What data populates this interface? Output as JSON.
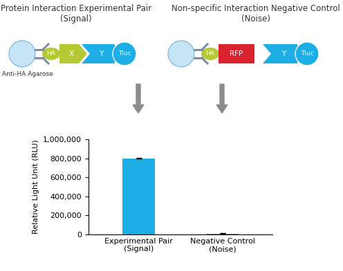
{
  "chart_data": {
    "type": "bar",
    "categories": [
      "Experimental Pair\n(Signal)",
      "Negative Control\n(Noise)"
    ],
    "values": [
      800000,
      10000
    ],
    "errors": [
      5000,
      5000
    ],
    "color": "#1daee6",
    "y_label": "Relative Light Unit (RLU)",
    "ylim": [
      0,
      1000000
    ],
    "yticks": [
      0,
      {
        "value": 200000,
        "label": "200,000"
      },
      {
        "value": 400000,
        "label": "400,000"
      },
      {
        "value": 600000,
        "label": "600,000"
      },
      {
        "value": 800000,
        "label": "800,000"
      },
      {
        "value": 1000000,
        "label": "1,000,000"
      }
    ],
    "grid": false
  },
  "diagram": {
    "panels": [
      {
        "title": "Protein Interaction Experimental Pair\n(Signal)",
        "parts": [
          "HA",
          "X",
          "Y",
          "Tluc"
        ],
        "support_label": "Anti-HA Agarose"
      },
      {
        "title": "Non-specific Interaction Negative Control\n(Noise)",
        "parts": [
          "HA",
          "RFP",
          "Y",
          "Tluc"
        ]
      }
    ]
  }
}
